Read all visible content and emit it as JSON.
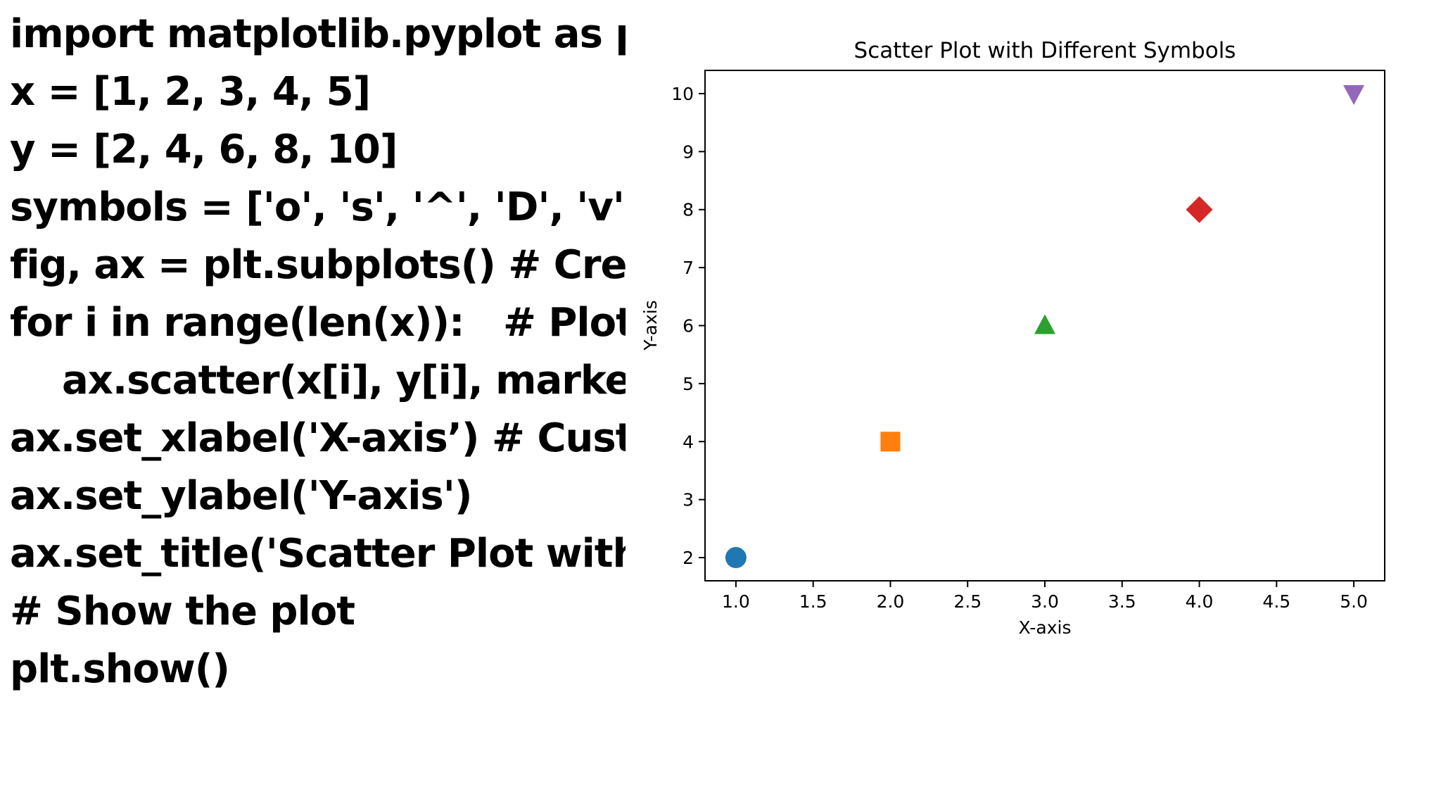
{
  "code": {
    "lines": [
      "import matplotlib.pyplot as plt",
      "x = [1, 2, 3, 4, 5]",
      "y = [2, 4, 6, 8, 10]",
      "symbols = ['o', 's', '^', 'D', 'v']",
      "fig, ax = plt.subplots() # Create",
      "for i in range(len(x)):   # Plot th",
      "    ax.scatter(x[i], y[i], marker=s",
      "ax.set_xlabel('X-axis’) # Custon",
      "ax.set_ylabel('Y-axis')",
      "ax.set_title('Scatter Plot with D",
      "# Show the plot",
      "plt.show()"
    ]
  },
  "chart_data": {
    "type": "scatter",
    "title": "Scatter Plot with Different Symbols",
    "xlabel": "X-axis",
    "ylabel": "Y-axis",
    "xlim": [
      0.8,
      5.2
    ],
    "ylim": [
      1.6,
      10.4
    ],
    "xticks": [
      "1.0",
      "1.5",
      "2.0",
      "2.5",
      "3.0",
      "3.5",
      "4.0",
      "4.5",
      "5.0"
    ],
    "yticks": [
      "2",
      "3",
      "4",
      "5",
      "6",
      "7",
      "8",
      "9",
      "10"
    ],
    "grid": false,
    "points": [
      {
        "x": 1,
        "y": 2,
        "marker": "circle",
        "color": "#1f77b4"
      },
      {
        "x": 2,
        "y": 4,
        "marker": "square",
        "color": "#ff7f0e"
      },
      {
        "x": 3,
        "y": 6,
        "marker": "triangle-up",
        "color": "#2ca02c"
      },
      {
        "x": 4,
        "y": 8,
        "marker": "diamond",
        "color": "#d62728"
      },
      {
        "x": 5,
        "y": 10,
        "marker": "triangle-down",
        "color": "#9467bd"
      }
    ]
  }
}
